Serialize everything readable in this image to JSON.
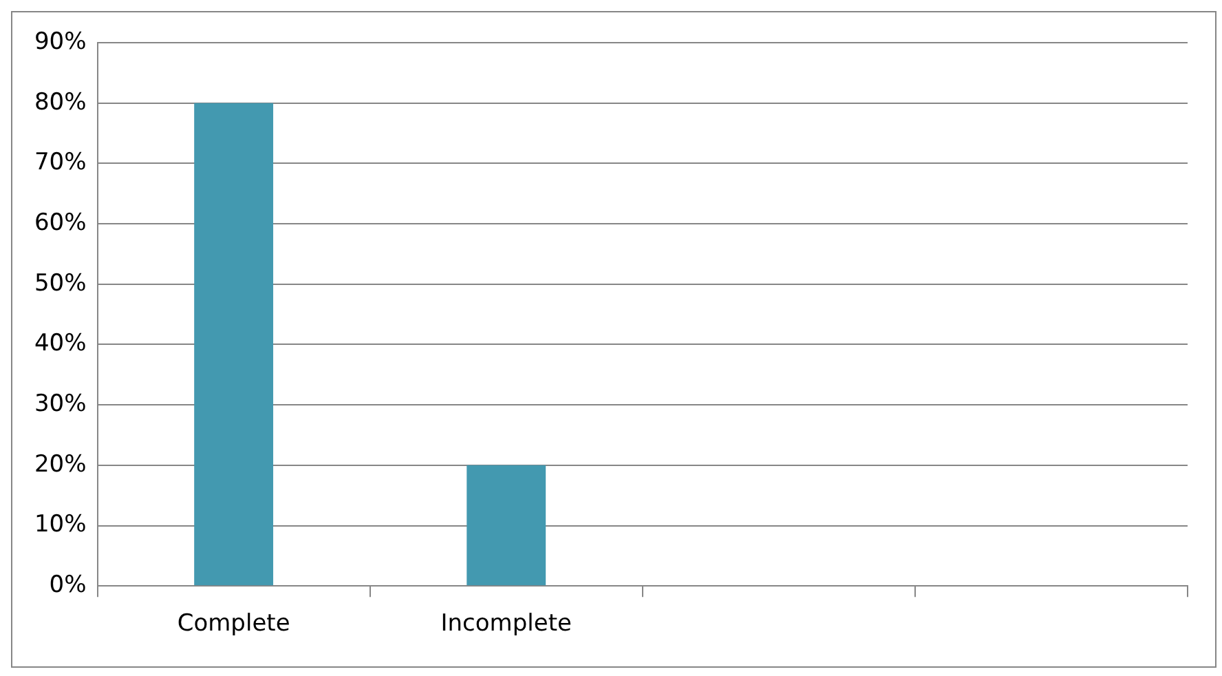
{
  "chart_data": {
    "type": "bar",
    "categories": [
      "Complete",
      "Incomplete",
      null,
      null
    ],
    "values": [
      80,
      20,
      null,
      null
    ],
    "color": "#4399b0",
    "ylim": [
      0,
      90
    ],
    "yticks": [
      {
        "value": 0,
        "label": "0%"
      },
      {
        "value": 10,
        "label": "10%"
      },
      {
        "value": 20,
        "label": "20%"
      },
      {
        "value": 30,
        "label": "30%"
      },
      {
        "value": 40,
        "label": "40%"
      },
      {
        "value": 50,
        "label": "50%"
      },
      {
        "value": 60,
        "label": "60%"
      },
      {
        "value": 70,
        "label": "70%"
      },
      {
        "value": 80,
        "label": "80%"
      },
      {
        "value": 90,
        "label": "90%"
      }
    ],
    "grid": "y",
    "legend": false
  }
}
